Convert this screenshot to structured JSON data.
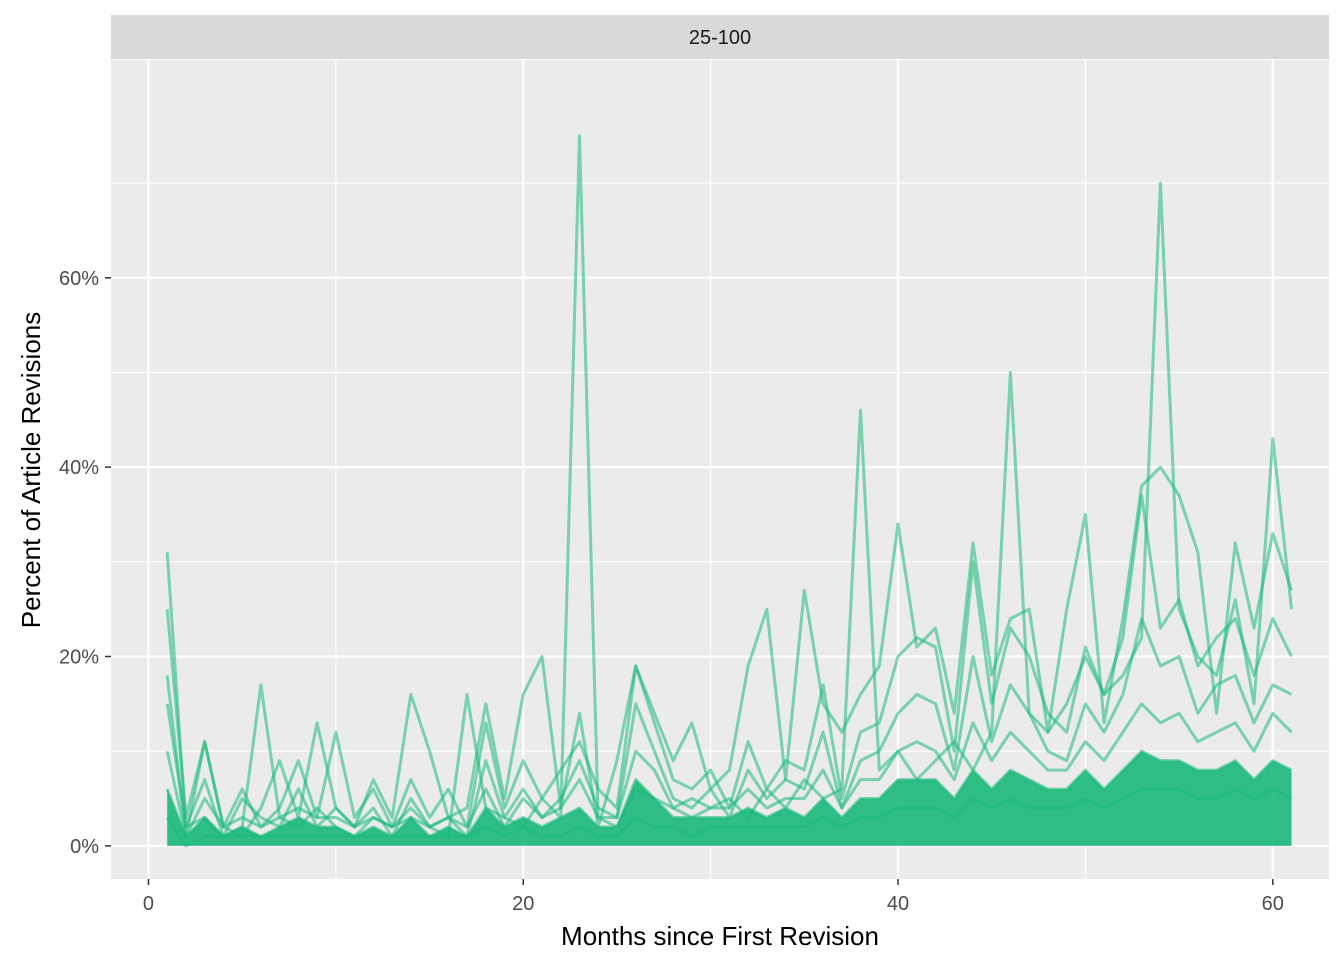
{
  "chart_data": {
    "type": "line",
    "facet_label": "25-100",
    "xlabel": "Months since First Revision",
    "ylabel": "Percent of Article Revisions",
    "xlim": [
      -2,
      63
    ],
    "ylim": [
      -3.5,
      83
    ],
    "x_ticks": [
      0,
      20,
      40,
      60
    ],
    "x_tick_labels": [
      "0",
      "20",
      "40",
      "60"
    ],
    "y_ticks": [
      0,
      20,
      40,
      60
    ],
    "y_tick_labels": [
      "0%",
      "20%",
      "40%",
      "60%"
    ],
    "grid": true,
    "legend": "none",
    "color": "#19b97a",
    "series": [
      {
        "x": [
          1,
          2,
          3,
          4,
          5,
          6,
          7,
          8,
          9,
          10,
          11,
          12,
          13,
          14,
          15,
          16,
          17,
          18,
          19,
          20,
          21,
          22,
          23,
          24,
          25,
          26,
          27,
          28,
          29,
          30,
          31,
          32,
          33,
          34,
          35,
          36,
          37,
          38,
          39,
          40,
          41,
          42,
          43,
          44,
          45,
          46,
          47,
          48,
          49,
          50,
          51,
          52,
          53,
          54,
          55,
          56,
          57,
          58,
          59,
          60,
          61
        ],
        "values": [
          31,
          2,
          3,
          1,
          2,
          17,
          3,
          2,
          4,
          2,
          1,
          3,
          2,
          3,
          2,
          1,
          16,
          4,
          3,
          2,
          5,
          3,
          75,
          3,
          2,
          6,
          5,
          4,
          3,
          4,
          5,
          3,
          6,
          4,
          7,
          5,
          6,
          46,
          8,
          10,
          7,
          9,
          11,
          8,
          12,
          50,
          14,
          12,
          15,
          20,
          16,
          18,
          22,
          70,
          25,
          20,
          18,
          26,
          15,
          43,
          25
        ]
      },
      {
        "x": [
          1,
          2,
          3,
          4,
          5,
          6,
          7,
          8,
          9,
          10,
          11,
          12,
          13,
          14,
          15,
          16,
          17,
          18,
          19,
          20,
          21,
          22,
          23,
          24,
          25,
          26,
          27,
          28,
          29,
          30,
          31,
          32,
          33,
          34,
          35,
          36,
          37,
          38,
          39,
          40,
          41,
          42,
          43,
          44,
          45,
          46,
          47,
          48,
          49,
          50,
          51,
          52,
          53,
          54,
          55,
          56,
          57,
          58,
          59,
          60,
          61
        ],
        "values": [
          25,
          3,
          11,
          2,
          1,
          4,
          9,
          3,
          13,
          4,
          2,
          7,
          3,
          16,
          10,
          3,
          4,
          15,
          5,
          16,
          20,
          4,
          14,
          2,
          9,
          19,
          14,
          9,
          13,
          6,
          8,
          19,
          25,
          7,
          27,
          15,
          12,
          16,
          19,
          34,
          21,
          23,
          14,
          32,
          18,
          24,
          25,
          12,
          25,
          35,
          13,
          24,
          38,
          40,
          37,
          31,
          14,
          32,
          23,
          33,
          27
        ]
      },
      {
        "x": [
          1,
          2,
          3,
          4,
          5,
          6,
          7,
          8,
          9,
          10,
          11,
          12,
          13,
          14,
          15,
          16,
          17,
          18,
          19,
          20,
          21,
          22,
          23,
          24,
          25,
          26,
          27,
          28,
          29,
          30,
          31,
          32,
          33,
          34,
          35,
          36,
          37,
          38,
          39,
          40,
          41,
          42,
          43,
          44,
          45,
          46,
          47,
          48,
          49,
          50,
          51,
          52,
          53,
          54,
          55,
          56,
          57,
          58,
          59,
          60,
          61
        ],
        "values": [
          18,
          1,
          11,
          2,
          6,
          2,
          4,
          9,
          3,
          12,
          3,
          6,
          2,
          7,
          3,
          6,
          2,
          13,
          4,
          9,
          5,
          8,
          11,
          6,
          4,
          19,
          13,
          7,
          6,
          8,
          4,
          11,
          6,
          9,
          8,
          17,
          5,
          12,
          13,
          20,
          22,
          21,
          10,
          30,
          15,
          23,
          20,
          14,
          12,
          21,
          16,
          22,
          37,
          23,
          26,
          19,
          22,
          24,
          18,
          24,
          20
        ]
      },
      {
        "x": [
          1,
          2,
          3,
          4,
          5,
          6,
          7,
          8,
          9,
          10,
          11,
          12,
          13,
          14,
          15,
          16,
          17,
          18,
          19,
          20,
          21,
          22,
          23,
          24,
          25,
          26,
          27,
          28,
          29,
          30,
          31,
          32,
          33,
          34,
          35,
          36,
          37,
          38,
          39,
          40,
          41,
          42,
          43,
          44,
          45,
          46,
          47,
          48,
          49,
          50,
          51,
          52,
          53,
          54,
          55,
          56,
          57,
          58,
          59,
          60,
          61
        ],
        "values": [
          15,
          2,
          7,
          1,
          5,
          3,
          2,
          6,
          2,
          4,
          2,
          4,
          1,
          5,
          2,
          3,
          1,
          9,
          3,
          6,
          3,
          5,
          9,
          4,
          3,
          15,
          10,
          5,
          4,
          6,
          3,
          8,
          5,
          7,
          6,
          12,
          4,
          9,
          10,
          14,
          16,
          15,
          8,
          20,
          11,
          17,
          14,
          10,
          9,
          15,
          12,
          16,
          24,
          19,
          20,
          14,
          17,
          18,
          13,
          17,
          16
        ]
      },
      {
        "x": [
          1,
          2,
          3,
          4,
          5,
          6,
          7,
          8,
          9,
          10,
          11,
          12,
          13,
          14,
          15,
          16,
          17,
          18,
          19,
          20,
          21,
          22,
          23,
          24,
          25,
          26,
          27,
          28,
          29,
          30,
          31,
          32,
          33,
          34,
          35,
          36,
          37,
          38,
          39,
          40,
          41,
          42,
          43,
          44,
          45,
          46,
          47,
          48,
          49,
          50,
          51,
          52,
          53,
          54,
          55,
          56,
          57,
          58,
          59,
          60,
          61
        ],
        "values": [
          10,
          1,
          5,
          2,
          3,
          2,
          3,
          4,
          3,
          3,
          2,
          3,
          2,
          4,
          2,
          3,
          2,
          6,
          2,
          5,
          3,
          4,
          7,
          3,
          3,
          10,
          8,
          4,
          5,
          4,
          4,
          6,
          4,
          5,
          5,
          8,
          4,
          7,
          7,
          10,
          11,
          10,
          7,
          13,
          9,
          12,
          10,
          8,
          8,
          11,
          9,
          12,
          15,
          13,
          14,
          11,
          12,
          13,
          10,
          14,
          12
        ]
      },
      {
        "x": [
          1,
          2,
          3,
          4,
          5,
          6,
          7,
          8,
          9,
          10,
          11,
          12,
          13,
          14,
          15,
          16,
          17,
          18,
          19,
          20,
          21,
          22,
          23,
          24,
          25,
          26,
          27,
          28,
          29,
          30,
          31,
          32,
          33,
          34,
          35,
          36,
          37,
          38,
          39,
          40,
          41,
          42,
          43,
          44,
          45,
          46,
          47,
          48,
          49,
          50,
          51,
          52,
          53,
          54,
          55,
          56,
          57,
          58,
          59,
          60,
          61
        ],
        "values": [
          6,
          1,
          3,
          1,
          2,
          1,
          2,
          3,
          2,
          2,
          1,
          2,
          1,
          3,
          1,
          2,
          1,
          4,
          2,
          3,
          2,
          3,
          4,
          2,
          2,
          7,
          5,
          3,
          3,
          3,
          3,
          4,
          3,
          4,
          3,
          5,
          3,
          5,
          5,
          7,
          7,
          7,
          5,
          8,
          6,
          8,
          7,
          6,
          6,
          8,
          6,
          8,
          10,
          9,
          9,
          8,
          8,
          9,
          7,
          9,
          8
        ]
      },
      {
        "x": [
          1,
          2,
          3,
          4,
          5,
          6,
          7,
          8,
          9,
          10,
          11,
          12,
          13,
          14,
          15,
          16,
          17,
          18,
          19,
          20,
          21,
          22,
          23,
          24,
          25,
          26,
          27,
          28,
          29,
          30,
          31,
          32,
          33,
          34,
          35,
          36,
          37,
          38,
          39,
          40,
          41,
          42,
          43,
          44,
          45,
          46,
          47,
          48,
          49,
          50,
          51,
          52,
          53,
          54,
          55,
          56,
          57,
          58,
          59,
          60,
          61
        ],
        "values": [
          3,
          0,
          1,
          1,
          1,
          1,
          1,
          1,
          1,
          1,
          1,
          1,
          1,
          1,
          1,
          1,
          1,
          2,
          1,
          2,
          1,
          1,
          2,
          1,
          1,
          3,
          2,
          2,
          1,
          2,
          2,
          2,
          2,
          2,
          2,
          3,
          2,
          3,
          3,
          4,
          4,
          4,
          3,
          5,
          4,
          5,
          4,
          4,
          4,
          5,
          4,
          5,
          6,
          6,
          6,
          5,
          5,
          6,
          5,
          6,
          5
        ]
      }
    ]
  }
}
